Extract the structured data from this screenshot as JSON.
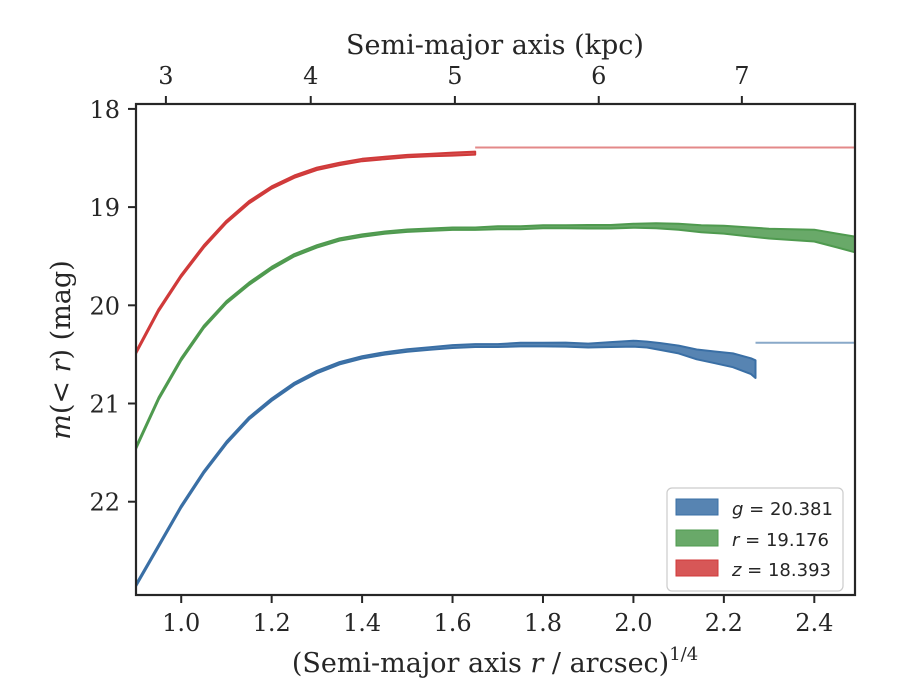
{
  "chart_data": {
    "type": "line",
    "title": "",
    "xlabel": "(Semi-major axis r / arcsec)^{1/4}",
    "xlabel_parts": [
      "(Semi-major axis ",
      "r",
      " / arcsec)",
      "1/4"
    ],
    "ylabel_parts": [
      "m",
      "(< ",
      "r",
      ")",
      " (mag)"
    ],
    "top_xlabel": "Semi-major axis (kpc)",
    "xlim": [
      0.9,
      2.49
    ],
    "ylim": [
      22.95,
      17.95
    ],
    "y_inverted": true,
    "x_ticks": [
      1.0,
      1.2,
      1.4,
      1.6,
      1.8,
      2.0,
      2.2,
      2.4
    ],
    "x_tick_labels": [
      "1.0",
      "1.2",
      "1.4",
      "1.6",
      "1.8",
      "2.0",
      "2.2",
      "2.4"
    ],
    "y_ticks": [
      18,
      19,
      20,
      21,
      22
    ],
    "y_tick_labels": [
      "18",
      "19",
      "20",
      "21",
      "22"
    ],
    "top_ticks_at_x": [
      0.9661,
      1.2864,
      1.6052,
      1.9233,
      2.2398
    ],
    "top_tick_labels": [
      "3",
      "4",
      "5",
      "6",
      "7"
    ],
    "grid": false,
    "legend_position": "lower-right",
    "series": [
      {
        "name": "g = 20.381",
        "legend_var": "g",
        "legend_val": "20.381",
        "color": "#3a6fa5",
        "asymptote": 20.381,
        "x": [
          0.9,
          0.95,
          1.0,
          1.05,
          1.1,
          1.15,
          1.2,
          1.25,
          1.3,
          1.35,
          1.4,
          1.45,
          1.5,
          1.55,
          1.6,
          1.65,
          1.7,
          1.75,
          1.8,
          1.85,
          1.9,
          1.95,
          2.0,
          2.03,
          2.06,
          2.1,
          2.14,
          2.18,
          2.22,
          2.26,
          2.27
        ],
        "y": [
          22.85,
          22.45,
          22.05,
          21.7,
          21.4,
          21.15,
          20.96,
          20.8,
          20.68,
          20.59,
          20.53,
          20.49,
          20.46,
          20.44,
          20.42,
          20.41,
          20.41,
          20.4,
          20.4,
          20.4,
          20.41,
          20.4,
          20.39,
          20.4,
          20.42,
          20.45,
          20.5,
          20.53,
          20.56,
          20.62,
          20.65
        ],
        "w": [
          0.012,
          0.012,
          0.012,
          0.012,
          0.012,
          0.012,
          0.012,
          0.012,
          0.012,
          0.012,
          0.012,
          0.012,
          0.012,
          0.012,
          0.015,
          0.015,
          0.015,
          0.018,
          0.018,
          0.02,
          0.02,
          0.025,
          0.03,
          0.03,
          0.035,
          0.04,
          0.05,
          0.06,
          0.07,
          0.08,
          0.09
        ]
      },
      {
        "name": "r = 19.176",
        "legend_var": "r",
        "legend_val": "19.176",
        "color": "#4f9a4f",
        "asymptote": 19.176,
        "x": [
          0.9,
          0.95,
          1.0,
          1.05,
          1.1,
          1.15,
          1.2,
          1.25,
          1.3,
          1.35,
          1.4,
          1.45,
          1.5,
          1.55,
          1.6,
          1.65,
          1.7,
          1.75,
          1.8,
          1.85,
          1.9,
          1.95,
          2.0,
          2.05,
          2.1,
          2.15,
          2.2,
          2.25,
          2.3,
          2.35,
          2.4,
          2.45,
          2.49
        ],
        "y": [
          21.45,
          20.95,
          20.55,
          20.22,
          19.97,
          19.78,
          19.62,
          19.49,
          19.4,
          19.33,
          19.29,
          19.26,
          19.24,
          19.23,
          19.22,
          19.22,
          19.21,
          19.21,
          19.2,
          19.2,
          19.2,
          19.2,
          19.19,
          19.19,
          19.2,
          19.22,
          19.23,
          19.25,
          19.27,
          19.28,
          19.29,
          19.34,
          19.38
        ],
        "w": [
          0.012,
          0.012,
          0.012,
          0.012,
          0.012,
          0.012,
          0.012,
          0.012,
          0.012,
          0.012,
          0.012,
          0.012,
          0.012,
          0.012,
          0.012,
          0.012,
          0.015,
          0.015,
          0.015,
          0.015,
          0.018,
          0.018,
          0.02,
          0.025,
          0.03,
          0.035,
          0.04,
          0.045,
          0.05,
          0.055,
          0.06,
          0.07,
          0.08
        ]
      },
      {
        "name": "z = 18.393",
        "legend_var": "z",
        "legend_val": "18.393",
        "color": "#d03a3a",
        "asymptote": 18.393,
        "x": [
          0.9,
          0.95,
          1.0,
          1.05,
          1.1,
          1.15,
          1.2,
          1.25,
          1.3,
          1.35,
          1.4,
          1.45,
          1.5,
          1.55,
          1.6,
          1.65
        ],
        "y": [
          20.48,
          20.05,
          19.7,
          19.4,
          19.15,
          18.95,
          18.8,
          18.69,
          18.61,
          18.56,
          18.52,
          18.5,
          18.48,
          18.47,
          18.46,
          18.45
        ],
        "w": [
          0.012,
          0.012,
          0.012,
          0.012,
          0.012,
          0.012,
          0.012,
          0.012,
          0.012,
          0.012,
          0.012,
          0.012,
          0.012,
          0.012,
          0.015,
          0.015
        ]
      }
    ]
  }
}
